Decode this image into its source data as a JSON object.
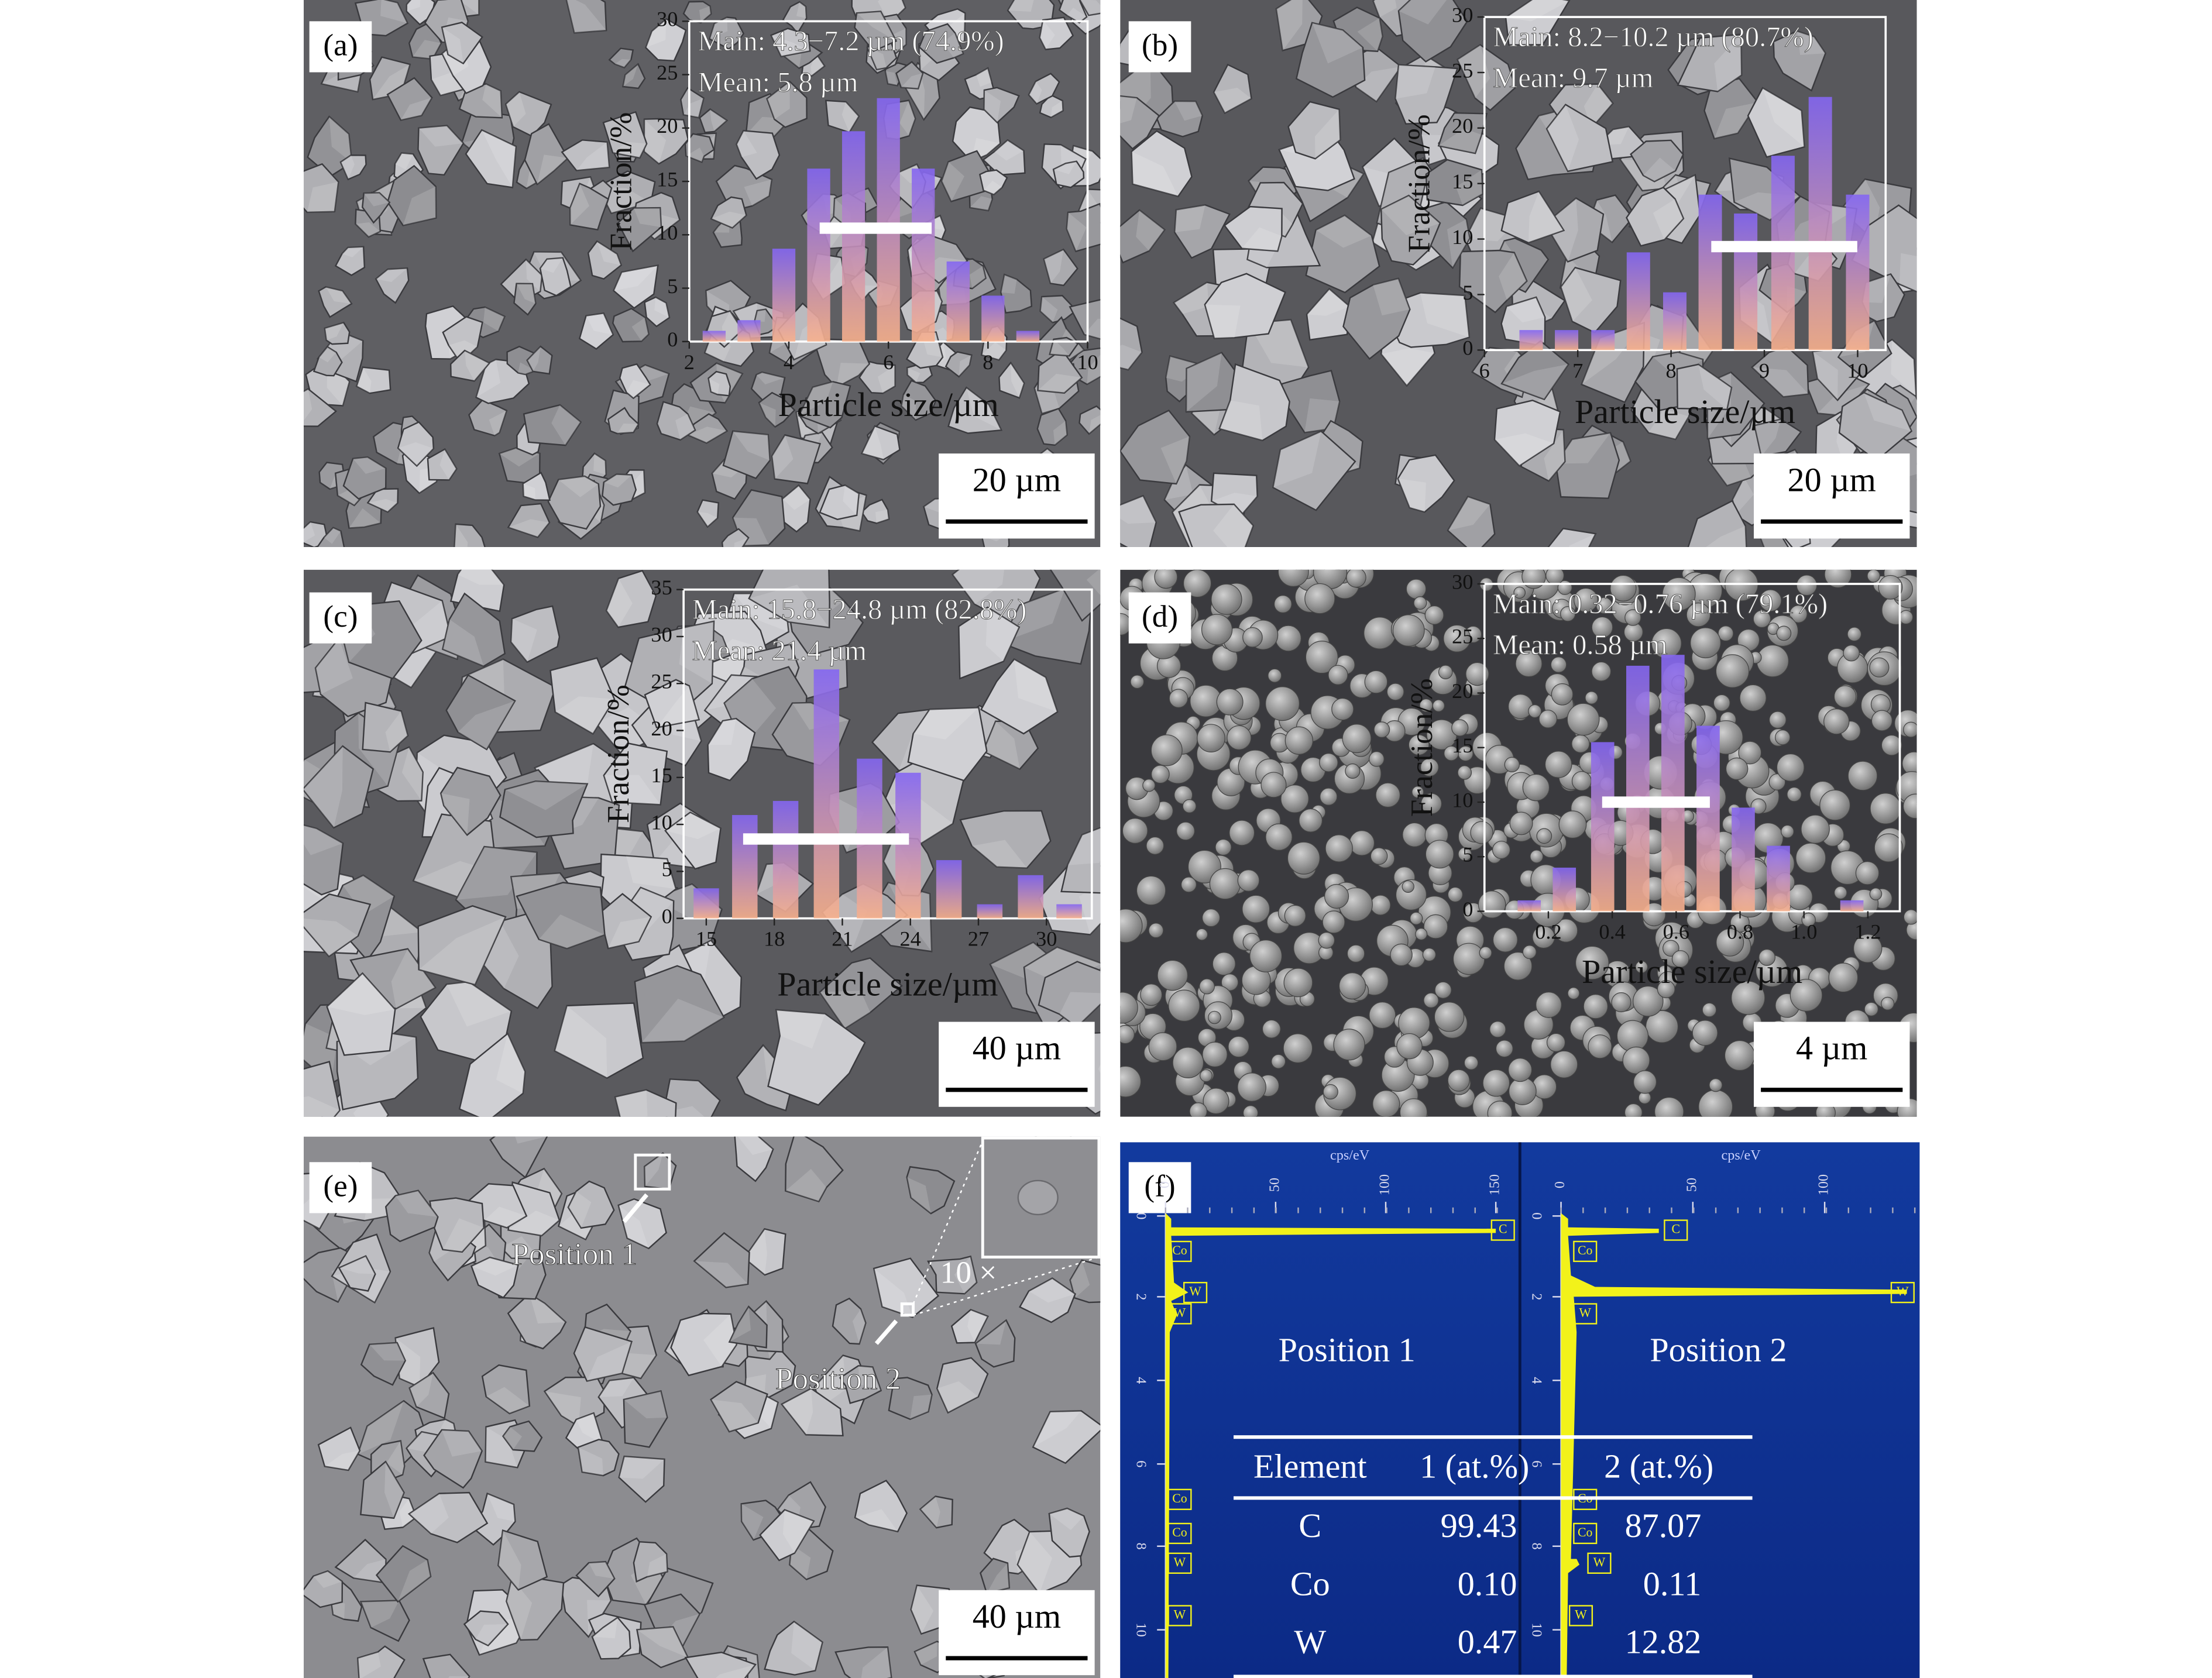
{
  "panels": [
    {
      "label": "(a)",
      "scale_bar": "20 µm"
    },
    {
      "label": "(b)",
      "scale_bar": "20 µm"
    },
    {
      "label": "(c)",
      "scale_bar": "40 µm"
    },
    {
      "label": "(d)",
      "scale_bar": "4 µm"
    },
    {
      "label": "(e)",
      "scale_bar": "40 µm"
    },
    {
      "label": "(f)"
    }
  ],
  "chart_data": [
    {
      "type": "bar",
      "annotations": [
        "Main: 4.3−7.2 µm (74.9%)",
        "Mean: 5.8 µm"
      ],
      "x_label": "Particle size/µm",
      "y_label": "Fraction/%",
      "x": [
        2.5,
        3.2,
        3.9,
        4.6,
        5.3,
        6.0,
        6.7,
        7.4,
        8.1,
        8.8
      ],
      "values": [
        1,
        2,
        8.7,
        16.2,
        19.7,
        22.8,
        16.2,
        7.5,
        4.3,
        1
      ],
      "xlim": [
        2,
        10
      ],
      "ylim": [
        0,
        30
      ],
      "xticks": [
        2,
        4,
        6,
        8,
        10
      ],
      "yticks": [
        0,
        5,
        10,
        15,
        20,
        25,
        30
      ],
      "color_top": "#8466f2",
      "color_bottom": "#f7b08c"
    },
    {
      "type": "bar",
      "annotations": [
        "Main: 8.2−10.2 µm (80.7%)",
        "Mean: 9.7 µm"
      ],
      "x_label": "Particle size/µm",
      "y_label": "Fraction/%",
      "x": [
        6.5,
        6.88,
        7.27,
        7.65,
        8.04,
        8.42,
        8.8,
        9.2,
        9.6,
        10.0
      ],
      "values": [
        1.8,
        1.8,
        1.8,
        8.8,
        5.2,
        14,
        12.3,
        17.5,
        22.8,
        14
      ],
      "xlim": [
        6,
        10.3
      ],
      "ylim": [
        0,
        30
      ],
      "xticks": [
        6,
        7,
        8,
        9,
        10
      ],
      "yticks": [
        0,
        5,
        10,
        15,
        20,
        25,
        30
      ],
      "color_top": "#8466f2",
      "color_bottom": "#f7b08c"
    },
    {
      "type": "bar",
      "annotations": [
        "Main: 15.8−24.8 µm (82.8%)",
        "Mean: 21.4 µm"
      ],
      "x_label": "Particle size/µm",
      "y_label": "Fraction/%",
      "x": [
        15,
        16.7,
        18.5,
        20.3,
        22.2,
        23.9,
        25.7,
        27.5,
        29.3,
        31
      ],
      "values": [
        3.2,
        11,
        12.5,
        26.5,
        17,
        15.5,
        6.2,
        1.5,
        4.6,
        1.5
      ],
      "xlim": [
        14,
        32
      ],
      "ylim": [
        0,
        35
      ],
      "xticks": [
        15,
        18,
        21,
        24,
        27,
        30
      ],
      "yticks": [
        0,
        5,
        10,
        15,
        20,
        25,
        30,
        35
      ],
      "color_top": "#8466f2",
      "color_bottom": "#f7b08c"
    },
    {
      "type": "bar",
      "annotations": [
        "Main: 0.32−0.76 µm (79.1%)",
        "Mean: 0.58 µm"
      ],
      "x_label": "Particle size/µm",
      "y_label": "Fraction/%",
      "x": [
        0.14,
        0.25,
        0.37,
        0.48,
        0.59,
        0.7,
        0.81,
        0.92,
        1.15
      ],
      "values": [
        1,
        4,
        15.5,
        22.5,
        23.5,
        17,
        9.5,
        6,
        1
      ],
      "xlim": [
        0,
        1.3
      ],
      "ylim": [
        0,
        30
      ],
      "xticks": [
        0.2,
        0.4,
        0.6,
        0.8,
        {
          "value": 1,
          "label": "1.0"
        },
        1.2
      ],
      "yticks": [
        0,
        5,
        10,
        15,
        20,
        25,
        30
      ],
      "color_top": "#8466f2",
      "color_bottom": "#f7b08c"
    }
  ],
  "panel_e": {
    "positions": [
      "Position 1",
      "Position 2"
    ],
    "magnification": "10 ×"
  },
  "panel_f": {
    "axis_unit": "cps/eV",
    "positions": [
      "Position 1",
      "Position 2"
    ],
    "x_ticks_1": [
      0,
      50,
      100,
      150
    ],
    "x_ticks_2": [
      0,
      50,
      100
    ],
    "y_ticks": [
      0,
      2,
      4,
      6,
      8,
      10
    ],
    "peak_labels_1": [
      "C",
      "Co",
      "W",
      "W",
      "Co",
      "Co",
      "W",
      "W"
    ],
    "peak_labels_2": [
      "C",
      "Co",
      "W",
      "W",
      "Co",
      "Co",
      "W",
      "W"
    ],
    "table": {
      "header": [
        "Element",
        "1 (at.%)",
        "2 (at.%)"
      ],
      "rows": [
        [
          "C",
          "99.43",
          "87.07"
        ],
        [
          "Co",
          "0.10",
          "0.11"
        ],
        [
          "W",
          "0.47",
          "12.82"
        ]
      ]
    }
  }
}
